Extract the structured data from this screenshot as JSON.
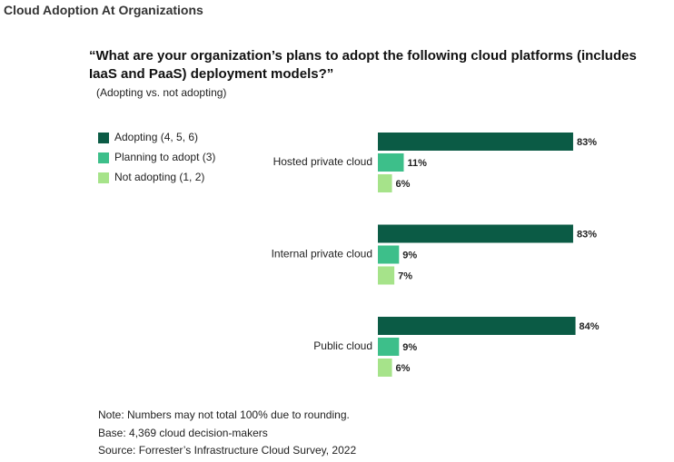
{
  "chart_data": {
    "type": "bar",
    "header": "Cloud Adoption At Organizations",
    "title": "“What are your organization’s plans to adopt the following cloud platforms (includes IaaS and PaaS) deployment models?”",
    "subtitle": "(Adopting vs. not adopting)",
    "categories": [
      "Hosted private cloud",
      "Internal private cloud",
      "Public cloud"
    ],
    "series": [
      {
        "name": "Adopting (4, 5, 6)",
        "color": "#0b5b45",
        "values": [
          83,
          83,
          84
        ],
        "value_labels": [
          "83%",
          "83%",
          "84%"
        ]
      },
      {
        "name": "Planning to adopt (3)",
        "color": "#3dbf8a",
        "values": [
          11,
          9,
          9
        ],
        "value_labels": [
          "11%",
          "9%",
          "9%"
        ]
      },
      {
        "name": "Not adopting (1, 2)",
        "color": "#a6e38a",
        "values": [
          6,
          7,
          6
        ],
        "value_labels": [
          "6%",
          "7%",
          "6%"
        ]
      }
    ],
    "notes": [
      "Note: Numbers may not total 100% due to rounding.",
      "Base: 4,369 cloud decision-makers",
      "Source: Forrester’s Infrastructure Cloud Survey, 2022"
    ]
  }
}
